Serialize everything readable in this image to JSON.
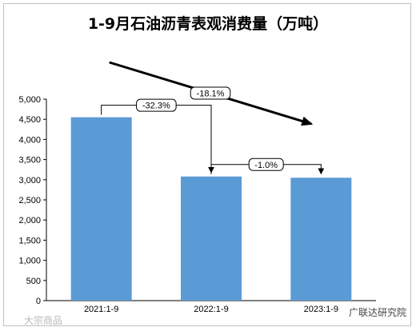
{
  "chart_data": {
    "type": "bar",
    "title": "1-9月石油沥青表观消费量（万吨）",
    "categories": [
      "2021:1-9",
      "2022:1-9",
      "2023:1-9"
    ],
    "series": [
      {
        "values": [
          4550,
          3080,
          3050
        ]
      }
    ],
    "ylim": [
      0,
      5000
    ],
    "yticks": [
      0,
      500,
      1000,
      1500,
      2000,
      2500,
      3000,
      3500,
      4000,
      4500,
      5000
    ],
    "ytick_labels": [
      "0",
      "500",
      "1,000",
      "1,500",
      "2,000",
      "2,500",
      "3,000",
      "3,500",
      "4,000",
      "4,500",
      "5,000"
    ],
    "bar_color": "#5b9bd5",
    "grid": false,
    "annotations": [
      {
        "label": "-32.3%",
        "from": "2021:1-9",
        "to": "2022:1-9",
        "type": "bracket"
      },
      {
        "label": "-1.0%",
        "from": "2022:1-9",
        "to": "2023:1-9",
        "type": "bracket"
      },
      {
        "label": "-18.1%",
        "from": "2021:1-9",
        "to": "2023:1-9",
        "type": "trend-arrow"
      }
    ]
  },
  "watermarks": {
    "left": "大宗商品",
    "right": "广联达研究院"
  }
}
